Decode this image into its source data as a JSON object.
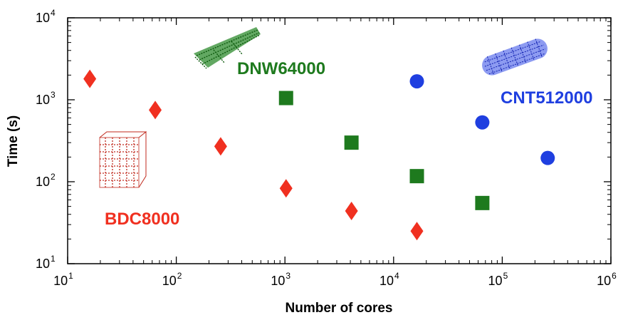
{
  "chart_data": {
    "type": "scatter",
    "xlabel": "Number of cores",
    "ylabel": "Time (s)",
    "x_scale": "log",
    "y_scale": "log",
    "xlim": [
      10,
      1000000
    ],
    "ylim": [
      10,
      10000
    ],
    "x_ticks": [
      {
        "base": "10",
        "exp": "1"
      },
      {
        "base": "10",
        "exp": "2"
      },
      {
        "base": "10",
        "exp": "3"
      },
      {
        "base": "10",
        "exp": "4"
      },
      {
        "base": "10",
        "exp": "5"
      },
      {
        "base": "10",
        "exp": "6"
      }
    ],
    "y_ticks": [
      {
        "base": "10",
        "exp": "1"
      },
      {
        "base": "10",
        "exp": "2"
      },
      {
        "base": "10",
        "exp": "3"
      },
      {
        "base": "10",
        "exp": "4"
      }
    ],
    "grid": false,
    "series": [
      {
        "name": "BDC8000",
        "marker": "diamond",
        "color": "#f03020",
        "points": [
          {
            "x": 16,
            "y": 1800
          },
          {
            "x": 64,
            "y": 750
          },
          {
            "x": 256,
            "y": 270
          },
          {
            "x": 1024,
            "y": 83
          },
          {
            "x": 4096,
            "y": 44
          },
          {
            "x": 16384,
            "y": 25
          }
        ]
      },
      {
        "name": "DNW64000",
        "marker": "square",
        "color": "#1e7a1e",
        "points": [
          {
            "x": 1024,
            "y": 1050
          },
          {
            "x": 4096,
            "y": 300
          },
          {
            "x": 16384,
            "y": 117
          },
          {
            "x": 65536,
            "y": 55
          }
        ]
      },
      {
        "name": "CNT512000",
        "marker": "circle",
        "color": "#1f3fe0",
        "points": [
          {
            "x": 16384,
            "y": 1680
          },
          {
            "x": 65536,
            "y": 530
          },
          {
            "x": 262144,
            "y": 195
          }
        ]
      }
    ]
  }
}
